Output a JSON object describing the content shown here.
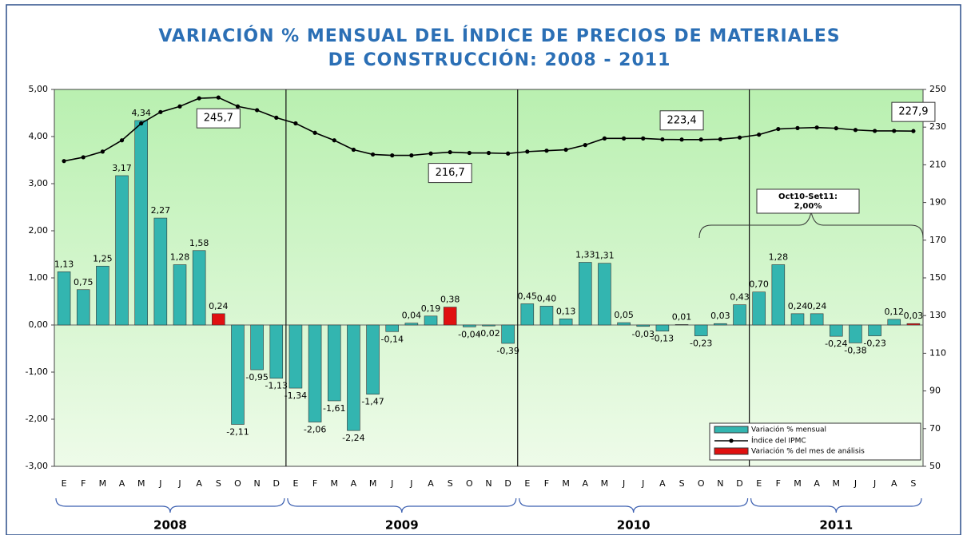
{
  "chart_data": {
    "type": "bar_line",
    "title": [
      "VARIACIÓN % MENSUAL DEL ÍNDICE DE PRECIOS DE MATERIALES",
      "DE CONSTRUCCIÓN: 2008 - 2011"
    ],
    "categories": [
      "E",
      "F",
      "M",
      "A",
      "M",
      "J",
      "J",
      "A",
      "S",
      "O",
      "N",
      "D",
      "E",
      "F",
      "M",
      "A",
      "M",
      "J",
      "J",
      "A",
      "S",
      "O",
      "N",
      "D",
      "E",
      "F",
      "M",
      "A",
      "M",
      "J",
      "J",
      "A",
      "S",
      "O",
      "N",
      "D",
      "E",
      "F",
      "M",
      "A",
      "M",
      "J",
      "J",
      "A",
      "S"
    ],
    "groups": [
      "2008",
      "2009",
      "2010",
      "2011"
    ],
    "series": [
      {
        "name": "Variación % mensual",
        "color": "#33b5b0",
        "type": "bar",
        "values": [
          1.13,
          0.75,
          1.25,
          3.17,
          4.34,
          2.27,
          1.28,
          1.58,
          0.24,
          -2.11,
          -0.95,
          -1.13,
          -1.34,
          -2.06,
          -1.61,
          -2.24,
          -1.47,
          -0.14,
          0.04,
          0.19,
          0.38,
          -0.04,
          -0.02,
          -0.39,
          0.45,
          0.4,
          0.13,
          1.33,
          1.31,
          0.05,
          -0.03,
          -0.13,
          0.01,
          -0.23,
          0.03,
          0.43,
          0.7,
          1.28,
          0.24,
          0.24,
          -0.24,
          -0.38,
          -0.23,
          0.12,
          0.03
        ],
        "value_labels": [
          "1,13",
          "0,75",
          "1,25",
          "3,17",
          "4,34",
          "2,27",
          "1,28",
          "1,58",
          "0,24",
          "-2,11",
          "-0,95",
          "-1,13",
          "-1,34",
          "-2,06",
          "-1,61",
          "-2,24",
          "-1,47",
          "-0,14",
          "0,04",
          "0,19",
          "0,38",
          "-0,04",
          "-0,02",
          "-0,39",
          "0,45",
          "0,40",
          "0,13",
          "1,33",
          "1,31",
          "0,05",
          "-0,03",
          "-0,13",
          "0,01",
          "-0,23",
          "0,03",
          "0,43",
          "0,70",
          "1,28",
          "0,24",
          "0,24",
          "-0,24",
          "-0,38",
          "-0,23",
          "0,12",
          "0,03"
        ],
        "colors": [
          "#33b5b0",
          "#33b5b0",
          "#33b5b0",
          "#33b5b0",
          "#33b5b0",
          "#33b5b0",
          "#33b5b0",
          "#33b5b0",
          "#e01010",
          "#33b5b0",
          "#33b5b0",
          "#33b5b0",
          "#33b5b0",
          "#33b5b0",
          "#33b5b0",
          "#33b5b0",
          "#33b5b0",
          "#33b5b0",
          "#33b5b0",
          "#33b5b0",
          "#e01010",
          "#33b5b0",
          "#33b5b0",
          "#33b5b0",
          "#33b5b0",
          "#33b5b0",
          "#33b5b0",
          "#33b5b0",
          "#33b5b0",
          "#33b5b0",
          "#33b5b0",
          "#33b5b0",
          "#33b5b0",
          "#33b5b0",
          "#33b5b0",
          "#33b5b0",
          "#33b5b0",
          "#33b5b0",
          "#33b5b0",
          "#33b5b0",
          "#33b5b0",
          "#33b5b0",
          "#33b5b0",
          "#33b5b0",
          "#e01010"
        ]
      },
      {
        "name": "Índice del IPMC",
        "color": "#000000",
        "type": "line",
        "axis": "y2",
        "values": [
          212,
          214,
          217,
          223,
          232,
          238,
          241,
          245.3,
          245.7,
          241,
          239,
          235,
          232,
          227,
          223,
          218,
          215.5,
          215,
          215,
          216,
          216.7,
          216.3,
          216.3,
          216,
          217,
          217.5,
          218,
          220.5,
          224,
          224,
          224,
          223.5,
          223.4,
          223.4,
          223.6,
          224.5,
          226,
          229,
          229.5,
          229.8,
          229.4,
          228.5,
          228,
          228,
          227.9
        ],
        "value_labels": [
          null,
          null,
          null,
          null,
          null,
          null,
          null,
          null,
          "245,7",
          null,
          null,
          null,
          null,
          null,
          null,
          null,
          null,
          null,
          null,
          null,
          "216,7",
          null,
          null,
          null,
          null,
          null,
          null,
          null,
          null,
          null,
          null,
          null,
          "223,4",
          null,
          null,
          null,
          null,
          null,
          null,
          null,
          null,
          null,
          null,
          null,
          "227,9"
        ]
      }
    ],
    "highlight": {
      "name": "Variación % del mes de análisis",
      "color": "#e01010"
    },
    "annotation": [
      "Oct10-Set11:",
      "2,00%"
    ],
    "ylim": [
      -3,
      5
    ],
    "yticks": [
      {
        "value": -3,
        "label": "-3,00"
      },
      {
        "value": -2,
        "label": "-2,00"
      },
      {
        "value": -1,
        "label": "-1,00"
      },
      {
        "value": 0,
        "label": "0,00"
      },
      {
        "value": 1,
        "label": "1,00"
      },
      {
        "value": 2,
        "label": "2,00"
      },
      {
        "value": 3,
        "label": "3,00"
      },
      {
        "value": 4,
        "label": "4,00"
      },
      {
        "value": 5,
        "label": "5,00"
      }
    ],
    "y2lim": [
      50,
      250
    ],
    "y2ticks": [
      50,
      70,
      90,
      110,
      130,
      150,
      170,
      190,
      210,
      230,
      250
    ]
  }
}
